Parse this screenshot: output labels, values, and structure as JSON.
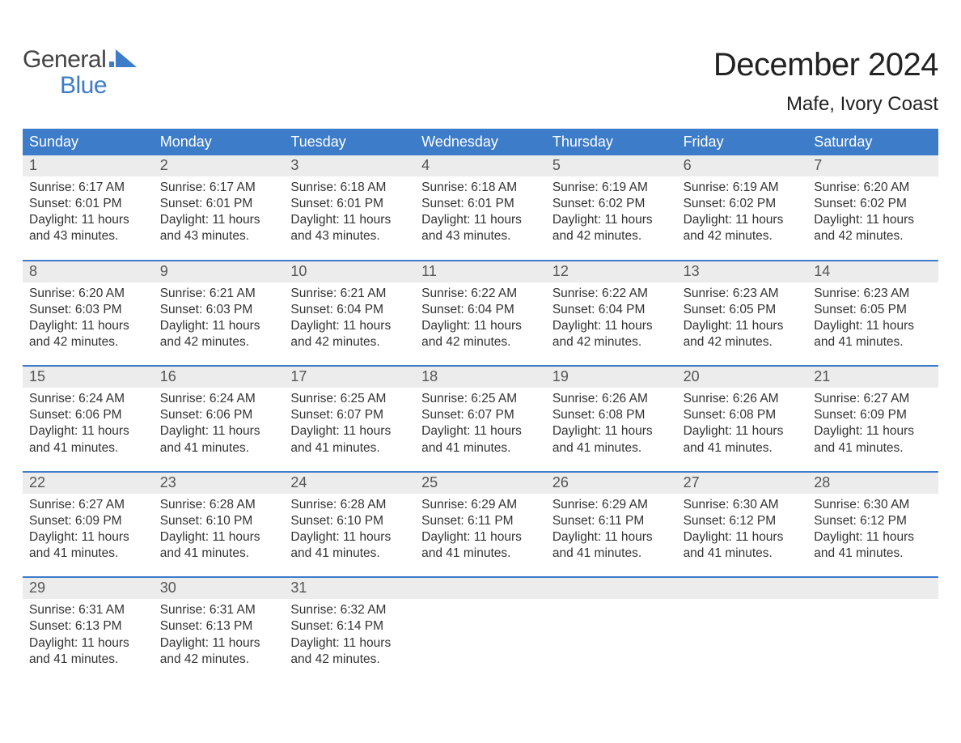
{
  "logo": {
    "line1": "General",
    "line2": "Blue",
    "flag_color": "#3d7cc9"
  },
  "title": "December 2024",
  "location": "Mafe, Ivory Coast",
  "colors": {
    "header_bg": "#3d7cc9",
    "header_text": "#ffffff",
    "daynum_bg": "#ececec",
    "week_border": "#3d7cc9",
    "body_text": "#333333",
    "background": "#ffffff"
  },
  "fonts": {
    "title_size_pt": 30,
    "location_size_pt": 18,
    "weekday_size_pt": 13,
    "daynum_size_pt": 13,
    "body_size_pt": 11
  },
  "weekdays": [
    "Sunday",
    "Monday",
    "Tuesday",
    "Wednesday",
    "Thursday",
    "Friday",
    "Saturday"
  ],
  "weeks": [
    [
      {
        "n": "1",
        "sunrise": "Sunrise: 6:17 AM",
        "sunset": "Sunset: 6:01 PM",
        "d1": "Daylight: 11 hours",
        "d2": "and 43 minutes."
      },
      {
        "n": "2",
        "sunrise": "Sunrise: 6:17 AM",
        "sunset": "Sunset: 6:01 PM",
        "d1": "Daylight: 11 hours",
        "d2": "and 43 minutes."
      },
      {
        "n": "3",
        "sunrise": "Sunrise: 6:18 AM",
        "sunset": "Sunset: 6:01 PM",
        "d1": "Daylight: 11 hours",
        "d2": "and 43 minutes."
      },
      {
        "n": "4",
        "sunrise": "Sunrise: 6:18 AM",
        "sunset": "Sunset: 6:01 PM",
        "d1": "Daylight: 11 hours",
        "d2": "and 43 minutes."
      },
      {
        "n": "5",
        "sunrise": "Sunrise: 6:19 AM",
        "sunset": "Sunset: 6:02 PM",
        "d1": "Daylight: 11 hours",
        "d2": "and 42 minutes."
      },
      {
        "n": "6",
        "sunrise": "Sunrise: 6:19 AM",
        "sunset": "Sunset: 6:02 PM",
        "d1": "Daylight: 11 hours",
        "d2": "and 42 minutes."
      },
      {
        "n": "7",
        "sunrise": "Sunrise: 6:20 AM",
        "sunset": "Sunset: 6:02 PM",
        "d1": "Daylight: 11 hours",
        "d2": "and 42 minutes."
      }
    ],
    [
      {
        "n": "8",
        "sunrise": "Sunrise: 6:20 AM",
        "sunset": "Sunset: 6:03 PM",
        "d1": "Daylight: 11 hours",
        "d2": "and 42 minutes."
      },
      {
        "n": "9",
        "sunrise": "Sunrise: 6:21 AM",
        "sunset": "Sunset: 6:03 PM",
        "d1": "Daylight: 11 hours",
        "d2": "and 42 minutes."
      },
      {
        "n": "10",
        "sunrise": "Sunrise: 6:21 AM",
        "sunset": "Sunset: 6:04 PM",
        "d1": "Daylight: 11 hours",
        "d2": "and 42 minutes."
      },
      {
        "n": "11",
        "sunrise": "Sunrise: 6:22 AM",
        "sunset": "Sunset: 6:04 PM",
        "d1": "Daylight: 11 hours",
        "d2": "and 42 minutes."
      },
      {
        "n": "12",
        "sunrise": "Sunrise: 6:22 AM",
        "sunset": "Sunset: 6:04 PM",
        "d1": "Daylight: 11 hours",
        "d2": "and 42 minutes."
      },
      {
        "n": "13",
        "sunrise": "Sunrise: 6:23 AM",
        "sunset": "Sunset: 6:05 PM",
        "d1": "Daylight: 11 hours",
        "d2": "and 42 minutes."
      },
      {
        "n": "14",
        "sunrise": "Sunrise: 6:23 AM",
        "sunset": "Sunset: 6:05 PM",
        "d1": "Daylight: 11 hours",
        "d2": "and 41 minutes."
      }
    ],
    [
      {
        "n": "15",
        "sunrise": "Sunrise: 6:24 AM",
        "sunset": "Sunset: 6:06 PM",
        "d1": "Daylight: 11 hours",
        "d2": "and 41 minutes."
      },
      {
        "n": "16",
        "sunrise": "Sunrise: 6:24 AM",
        "sunset": "Sunset: 6:06 PM",
        "d1": "Daylight: 11 hours",
        "d2": "and 41 minutes."
      },
      {
        "n": "17",
        "sunrise": "Sunrise: 6:25 AM",
        "sunset": "Sunset: 6:07 PM",
        "d1": "Daylight: 11 hours",
        "d2": "and 41 minutes."
      },
      {
        "n": "18",
        "sunrise": "Sunrise: 6:25 AM",
        "sunset": "Sunset: 6:07 PM",
        "d1": "Daylight: 11 hours",
        "d2": "and 41 minutes."
      },
      {
        "n": "19",
        "sunrise": "Sunrise: 6:26 AM",
        "sunset": "Sunset: 6:08 PM",
        "d1": "Daylight: 11 hours",
        "d2": "and 41 minutes."
      },
      {
        "n": "20",
        "sunrise": "Sunrise: 6:26 AM",
        "sunset": "Sunset: 6:08 PM",
        "d1": "Daylight: 11 hours",
        "d2": "and 41 minutes."
      },
      {
        "n": "21",
        "sunrise": "Sunrise: 6:27 AM",
        "sunset": "Sunset: 6:09 PM",
        "d1": "Daylight: 11 hours",
        "d2": "and 41 minutes."
      }
    ],
    [
      {
        "n": "22",
        "sunrise": "Sunrise: 6:27 AM",
        "sunset": "Sunset: 6:09 PM",
        "d1": "Daylight: 11 hours",
        "d2": "and 41 minutes."
      },
      {
        "n": "23",
        "sunrise": "Sunrise: 6:28 AM",
        "sunset": "Sunset: 6:10 PM",
        "d1": "Daylight: 11 hours",
        "d2": "and 41 minutes."
      },
      {
        "n": "24",
        "sunrise": "Sunrise: 6:28 AM",
        "sunset": "Sunset: 6:10 PM",
        "d1": "Daylight: 11 hours",
        "d2": "and 41 minutes."
      },
      {
        "n": "25",
        "sunrise": "Sunrise: 6:29 AM",
        "sunset": "Sunset: 6:11 PM",
        "d1": "Daylight: 11 hours",
        "d2": "and 41 minutes."
      },
      {
        "n": "26",
        "sunrise": "Sunrise: 6:29 AM",
        "sunset": "Sunset: 6:11 PM",
        "d1": "Daylight: 11 hours",
        "d2": "and 41 minutes."
      },
      {
        "n": "27",
        "sunrise": "Sunrise: 6:30 AM",
        "sunset": "Sunset: 6:12 PM",
        "d1": "Daylight: 11 hours",
        "d2": "and 41 minutes."
      },
      {
        "n": "28",
        "sunrise": "Sunrise: 6:30 AM",
        "sunset": "Sunset: 6:12 PM",
        "d1": "Daylight: 11 hours",
        "d2": "and 41 minutes."
      }
    ],
    [
      {
        "n": "29",
        "sunrise": "Sunrise: 6:31 AM",
        "sunset": "Sunset: 6:13 PM",
        "d1": "Daylight: 11 hours",
        "d2": "and 41 minutes."
      },
      {
        "n": "30",
        "sunrise": "Sunrise: 6:31 AM",
        "sunset": "Sunset: 6:13 PM",
        "d1": "Daylight: 11 hours",
        "d2": "and 42 minutes."
      },
      {
        "n": "31",
        "sunrise": "Sunrise: 6:32 AM",
        "sunset": "Sunset: 6:14 PM",
        "d1": "Daylight: 11 hours",
        "d2": "and 42 minutes."
      },
      {
        "empty": true
      },
      {
        "empty": true
      },
      {
        "empty": true
      },
      {
        "empty": true
      }
    ]
  ]
}
